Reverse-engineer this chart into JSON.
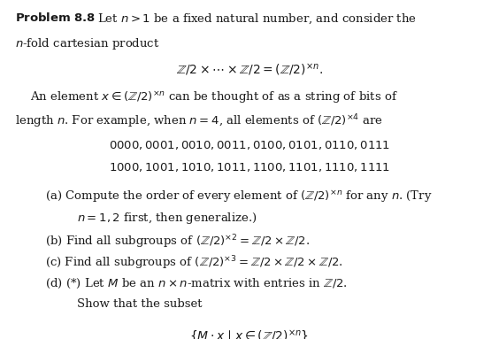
{
  "bg_color": "#ffffff",
  "text_color": "#1a1a1a",
  "fig_width": 5.64,
  "fig_height": 3.83,
  "dpi": 100,
  "fs": 9.5
}
